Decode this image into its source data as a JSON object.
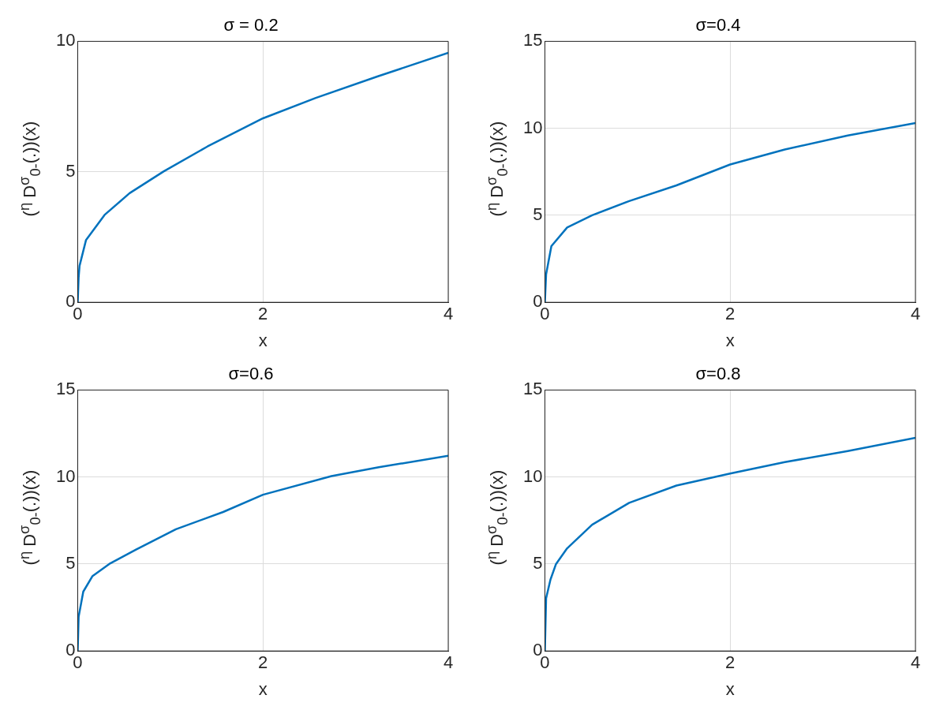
{
  "chart_data": [
    {
      "type": "line",
      "title": "σ = 0.2",
      "xlabel": "x",
      "ylabel": "($^{η}$ D$^{σ}$$_{0-}$(.))(x)",
      "xlim": [
        0,
        4
      ],
      "xticks": [
        0,
        2,
        4
      ],
      "ylim": [
        0,
        10
      ],
      "yticks": [
        0,
        5,
        10
      ],
      "grid": true,
      "marker": "none",
      "line_style": "solid",
      "series": [
        {
          "color": "#0072bd",
          "x": [
            0,
            0.01,
            0.02,
            0.09,
            0.29,
            0.56,
            0.93,
            1.4,
            2,
            2.57,
            3.24,
            4
          ],
          "values": [
            0,
            0.96,
            1.4,
            2.39,
            3.35,
            4.18,
            5.02,
            5.97,
            7.05,
            7.83,
            8.66,
            9.56
          ]
        }
      ]
    },
    {
      "type": "line",
      "title": "σ=0.4",
      "xlabel": "x",
      "ylabel": "($^{η}$ D$^{σ}$$_{0-}$(.))(x)",
      "xlim": [
        0,
        4
      ],
      "xticks": [
        0,
        2,
        4
      ],
      "ylim": [
        0,
        15
      ],
      "yticks": [
        0,
        5,
        10,
        15
      ],
      "grid": true,
      "marker": "none",
      "line_style": "solid",
      "series": [
        {
          "color": "#0072bd",
          "x": [
            0,
            0.013,
            0.07,
            0.24,
            0.51,
            0.91,
            1.42,
            2,
            2.59,
            3.27,
            4
          ],
          "values": [
            0,
            1.61,
            3.23,
            4.3,
            5,
            5.82,
            6.72,
            7.92,
            8.78,
            9.59,
            10.3
          ]
        }
      ]
    },
    {
      "type": "line",
      "title": "σ=0.6",
      "xlabel": "x",
      "ylabel": "($^{η}$ D$^{σ}$$_{0-}$(.))(x)",
      "xlim": [
        0,
        4
      ],
      "xticks": [
        0,
        2,
        4
      ],
      "ylim": [
        0,
        15
      ],
      "yticks": [
        0,
        5,
        10,
        15
      ],
      "grid": true,
      "marker": "none",
      "line_style": "solid",
      "series": [
        {
          "color": "#0072bd",
          "x": [
            0,
            0.01,
            0.06,
            0.16,
            0.34,
            0.63,
            1.06,
            1.57,
            2,
            2.74,
            3.25,
            4
          ],
          "values": [
            0,
            1.97,
            3.41,
            4.31,
            5,
            5.83,
            7,
            7.99,
            8.98,
            10.05,
            10.56,
            11.22
          ]
        }
      ]
    },
    {
      "type": "line",
      "title": "σ=0.8",
      "xlabel": "x",
      "ylabel": "($^{η}$ D$^{σ}$$_{0-}$(.))(x)",
      "xlim": [
        0,
        4
      ],
      "xticks": [
        0,
        2,
        4
      ],
      "ylim": [
        0,
        15
      ],
      "yticks": [
        0,
        5,
        10,
        15
      ],
      "grid": true,
      "marker": "none",
      "line_style": "solid",
      "series": [
        {
          "color": "#0072bd",
          "x": [
            0,
            0.013,
            0.06,
            0.12,
            0.24,
            0.51,
            0.91,
            1.42,
            2,
            2.59,
            3.27,
            4
          ],
          "values": [
            0,
            3.03,
            4.1,
            5,
            5.9,
            7.26,
            8.52,
            9.51,
            10.2,
            10.86,
            11.49,
            12.25
          ]
        }
      ]
    }
  ]
}
